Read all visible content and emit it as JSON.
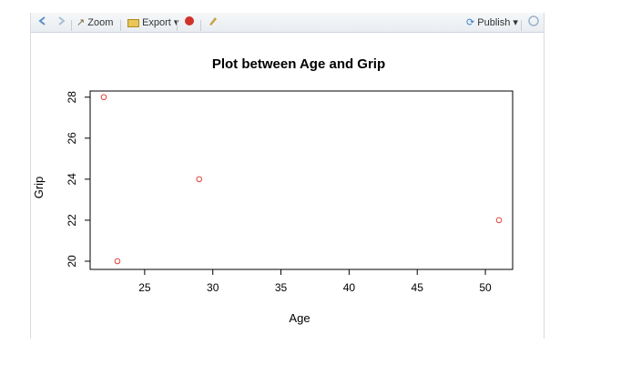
{
  "toolbar": {
    "back_icon": "arrow-left-icon",
    "forward_icon": "arrow-right-icon",
    "zoom_label": "Zoom",
    "export_label": "Export",
    "clear_icon": "remove-plot-icon",
    "broom_icon": "broom-icon",
    "publish_label": "Publish",
    "refresh_icon": "refresh-icon"
  },
  "colors": {
    "point": "#e0413b",
    "axis": "#000000"
  },
  "chart_data": {
    "type": "scatter",
    "title": "Plot between Age and Grip",
    "xlabel": "Age",
    "ylabel": "Grip",
    "xlim": [
      21,
      52
    ],
    "ylim": [
      19.6,
      28.3
    ],
    "x_ticks": [
      25,
      30,
      35,
      40,
      45,
      50
    ],
    "y_ticks": [
      20,
      22,
      24,
      26,
      28
    ],
    "grid": false,
    "legend": "none",
    "series": [
      {
        "x": [
          22,
          23,
          29,
          51
        ],
        "y": [
          28,
          20,
          24,
          22
        ],
        "marker": "open-circle"
      }
    ]
  }
}
